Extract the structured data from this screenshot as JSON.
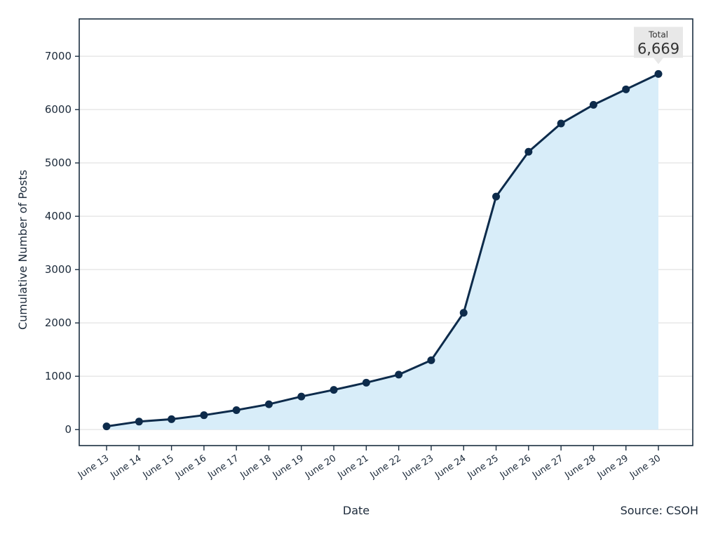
{
  "chart_data": {
    "type": "area",
    "title": "",
    "xlabel": "Date",
    "ylabel": "Cumulative Number of Posts",
    "source": "Source: CSOH",
    "x": [
      "June 13",
      "June 14",
      "June 15",
      "June 16",
      "June 17",
      "June 18",
      "June 19",
      "June 20",
      "June 21",
      "June 22",
      "June 23",
      "June 24",
      "June 25",
      "June 26",
      "June 27",
      "June 28",
      "June 29",
      "June 30"
    ],
    "y": [
      60,
      150,
      195,
      270,
      365,
      475,
      620,
      745,
      880,
      1030,
      1300,
      2190,
      4370,
      5210,
      5740,
      6090,
      6380,
      6669
    ],
    "yticks": [
      0,
      1000,
      2000,
      3000,
      4000,
      5000,
      6000,
      7000
    ],
    "ylim": [
      -300,
      7700
    ],
    "grid": "horizontal",
    "colors": {
      "line": "#0d2b4b",
      "fill": "#d8edf9",
      "grid": "#e6e6e6",
      "frame": "#1b2e40",
      "callout_bg": "#e8e8e8"
    },
    "annotation": {
      "label": "Total",
      "value": "6,669",
      "at": "June 30"
    }
  }
}
